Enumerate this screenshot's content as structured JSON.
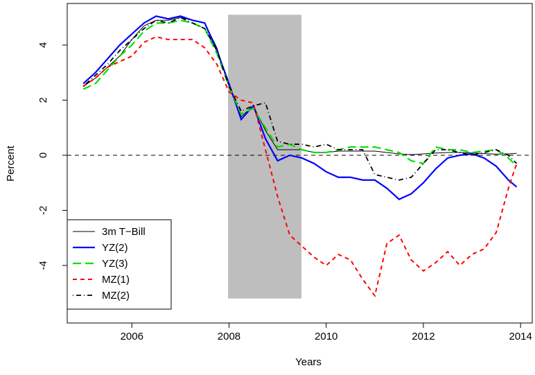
{
  "chart_data": {
    "type": "line",
    "x_label": "Years",
    "y_label": "Percent",
    "x": [
      2005.0,
      2005.25,
      2005.5,
      2005.75,
      2006.0,
      2006.25,
      2006.5,
      2006.75,
      2007.0,
      2007.25,
      2007.5,
      2007.75,
      2008.0,
      2008.25,
      2008.5,
      2008.75,
      2009.0,
      2009.25,
      2009.5,
      2009.75,
      2010.0,
      2010.25,
      2010.5,
      2010.75,
      2011.0,
      2011.25,
      2011.5,
      2011.75,
      2012.0,
      2012.25,
      2012.5,
      2012.75,
      2013.0,
      2013.25,
      2013.5,
      2013.75,
      2013.92
    ],
    "series": [
      {
        "name": "3m T−Bill",
        "color": "#000000",
        "width": 1,
        "dash": "solid",
        "values": [
          2.5,
          2.8,
          3.2,
          3.6,
          4.2,
          4.7,
          4.9,
          4.9,
          5.0,
          4.9,
          4.8,
          3.9,
          2.5,
          1.4,
          1.8,
          0.9,
          0.2,
          0.2,
          0.2,
          0.1,
          0.1,
          0.15,
          0.15,
          0.15,
          0.15,
          0.1,
          0.05,
          0.02,
          0.05,
          0.08,
          0.1,
          0.1,
          0.08,
          0.06,
          0.04,
          0.05,
          0.07
        ]
      },
      {
        "name": "YZ(2)",
        "color": "#0000ff",
        "width": 2.2,
        "dash": "solid",
        "values": [
          2.6,
          3.0,
          3.5,
          4.0,
          4.4,
          4.8,
          5.05,
          4.95,
          5.05,
          4.9,
          4.8,
          3.8,
          2.6,
          1.3,
          1.8,
          0.6,
          -0.2,
          0.0,
          -0.1,
          -0.3,
          -0.6,
          -0.8,
          -0.8,
          -0.9,
          -0.9,
          -1.2,
          -1.6,
          -1.4,
          -1.0,
          -0.5,
          -0.1,
          0.0,
          0.05,
          -0.1,
          -0.4,
          -0.9,
          -1.15
        ]
      },
      {
        "name": "YZ(3)",
        "color": "#00e000",
        "width": 2.2,
        "dash": "longdash",
        "values": [
          2.4,
          2.6,
          3.1,
          3.6,
          4.0,
          4.5,
          4.8,
          4.8,
          4.9,
          4.8,
          4.6,
          3.7,
          2.5,
          1.5,
          1.7,
          1.0,
          0.3,
          0.4,
          0.2,
          0.1,
          0.1,
          0.2,
          0.3,
          0.3,
          0.3,
          0.2,
          0.1,
          -0.2,
          -0.3,
          0.3,
          0.2,
          0.2,
          0.1,
          0.15,
          0.2,
          -0.1,
          -0.4
        ]
      },
      {
        "name": "MZ(1)",
        "color": "#ff0000",
        "width": 2,
        "dash": "dash",
        "values": [
          2.5,
          2.8,
          3.2,
          3.4,
          3.6,
          4.1,
          4.3,
          4.2,
          4.2,
          4.2,
          3.9,
          3.3,
          2.3,
          2.0,
          1.9,
          0.2,
          -1.5,
          -2.9,
          -3.3,
          -3.7,
          -4.0,
          -3.6,
          -3.8,
          -4.5,
          -5.1,
          -3.2,
          -2.9,
          -3.8,
          -4.2,
          -3.9,
          -3.5,
          -4.0,
          -3.6,
          -3.4,
          -2.8,
          -1.2,
          -0.3
        ]
      },
      {
        "name": "MZ(2)",
        "color": "#000000",
        "width": 1.8,
        "dash": "dotdash",
        "values": [
          2.5,
          2.9,
          3.3,
          3.8,
          4.2,
          4.6,
          4.9,
          4.8,
          5.0,
          4.8,
          4.6,
          3.8,
          2.5,
          1.6,
          1.8,
          1.9,
          0.5,
          0.4,
          0.4,
          0.3,
          0.4,
          0.2,
          0.2,
          0.2,
          -0.7,
          -0.8,
          -0.9,
          -0.8,
          -0.3,
          0.2,
          0.2,
          0.1,
          0.0,
          0.1,
          0.2,
          0.0,
          -0.3
        ]
      }
    ],
    "shaded_region": {
      "x": [
        2007.98,
        2009.49
      ],
      "y": [
        -5.2,
        5.1
      ],
      "color": "#bebebe"
    },
    "hline": 0,
    "xlim": [
      2004.67,
      2014.24
    ],
    "ylim": [
      -6.09,
      5.51
    ],
    "xticks": [
      2006,
      2008,
      2010,
      2012,
      2014
    ],
    "yticks": [
      -4,
      -2,
      0,
      2,
      4
    ],
    "legend": "bottom-left"
  }
}
